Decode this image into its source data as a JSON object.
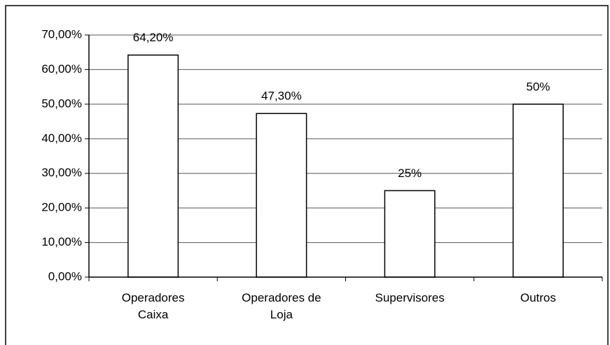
{
  "chart_data": {
    "type": "bar",
    "categories": [
      "Operadores Caixa",
      "Operadores de Loja",
      "Supervisores",
      "Outros"
    ],
    "values": [
      64.2,
      47.3,
      25,
      50
    ],
    "value_labels": [
      "64,20%",
      "47,30%",
      "25%",
      "50%"
    ],
    "color": "#ffffff",
    "ylim": [
      0,
      70
    ],
    "yticks": [
      {
        "value": 0,
        "label": "0,00%"
      },
      {
        "value": 10,
        "label": "10,00%"
      },
      {
        "value": 20,
        "label": "20,00%"
      },
      {
        "value": 30,
        "label": "30,00%"
      },
      {
        "value": 40,
        "label": "40,00%"
      },
      {
        "value": 50,
        "label": "50,00%"
      },
      {
        "value": 60,
        "label": "60,00%"
      },
      {
        "value": 70,
        "label": "70,00%"
      }
    ],
    "grid": true
  }
}
